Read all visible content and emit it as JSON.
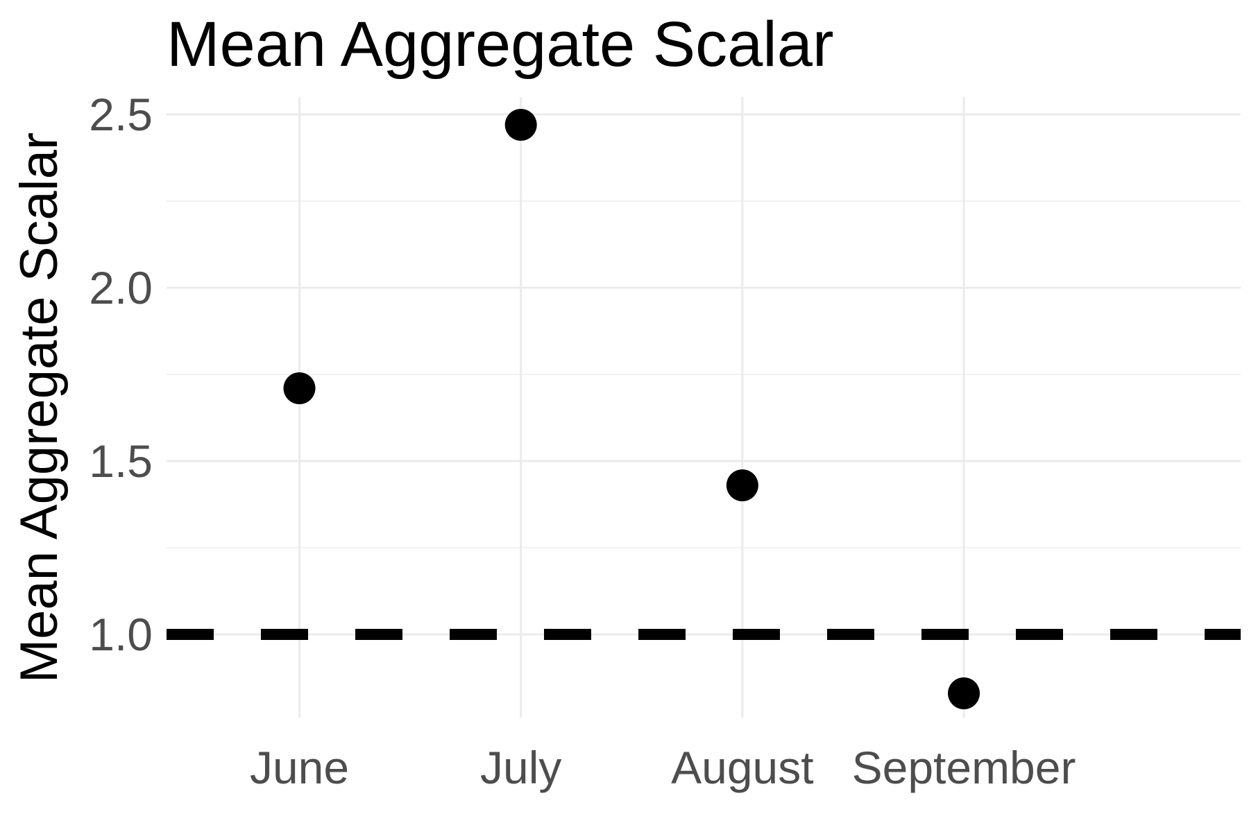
{
  "chart_data": {
    "type": "scatter",
    "title": "Mean Aggregate Scalar",
    "xlabel": "",
    "ylabel": "Mean Aggregate Scalar",
    "categories": [
      "June",
      "July",
      "August",
      "September"
    ],
    "series": [
      {
        "values": [
          1.71,
          2.47,
          1.43,
          0.83
        ]
      }
    ],
    "reference_line": {
      "y": 1.0,
      "style": "dashed"
    },
    "ylim": [
      0.76,
      2.55
    ],
    "yticks": [
      1.0,
      1.5,
      2.0,
      2.5
    ],
    "ytick_labels": [
      "1.0",
      "1.5",
      "2.0",
      "2.5"
    ],
    "grid": true,
    "legend": "none",
    "colors": {
      "points": "#000000",
      "reference_line": "#000000",
      "grid": "#ebebeb",
      "tick_text": "#4d4d4d"
    }
  }
}
